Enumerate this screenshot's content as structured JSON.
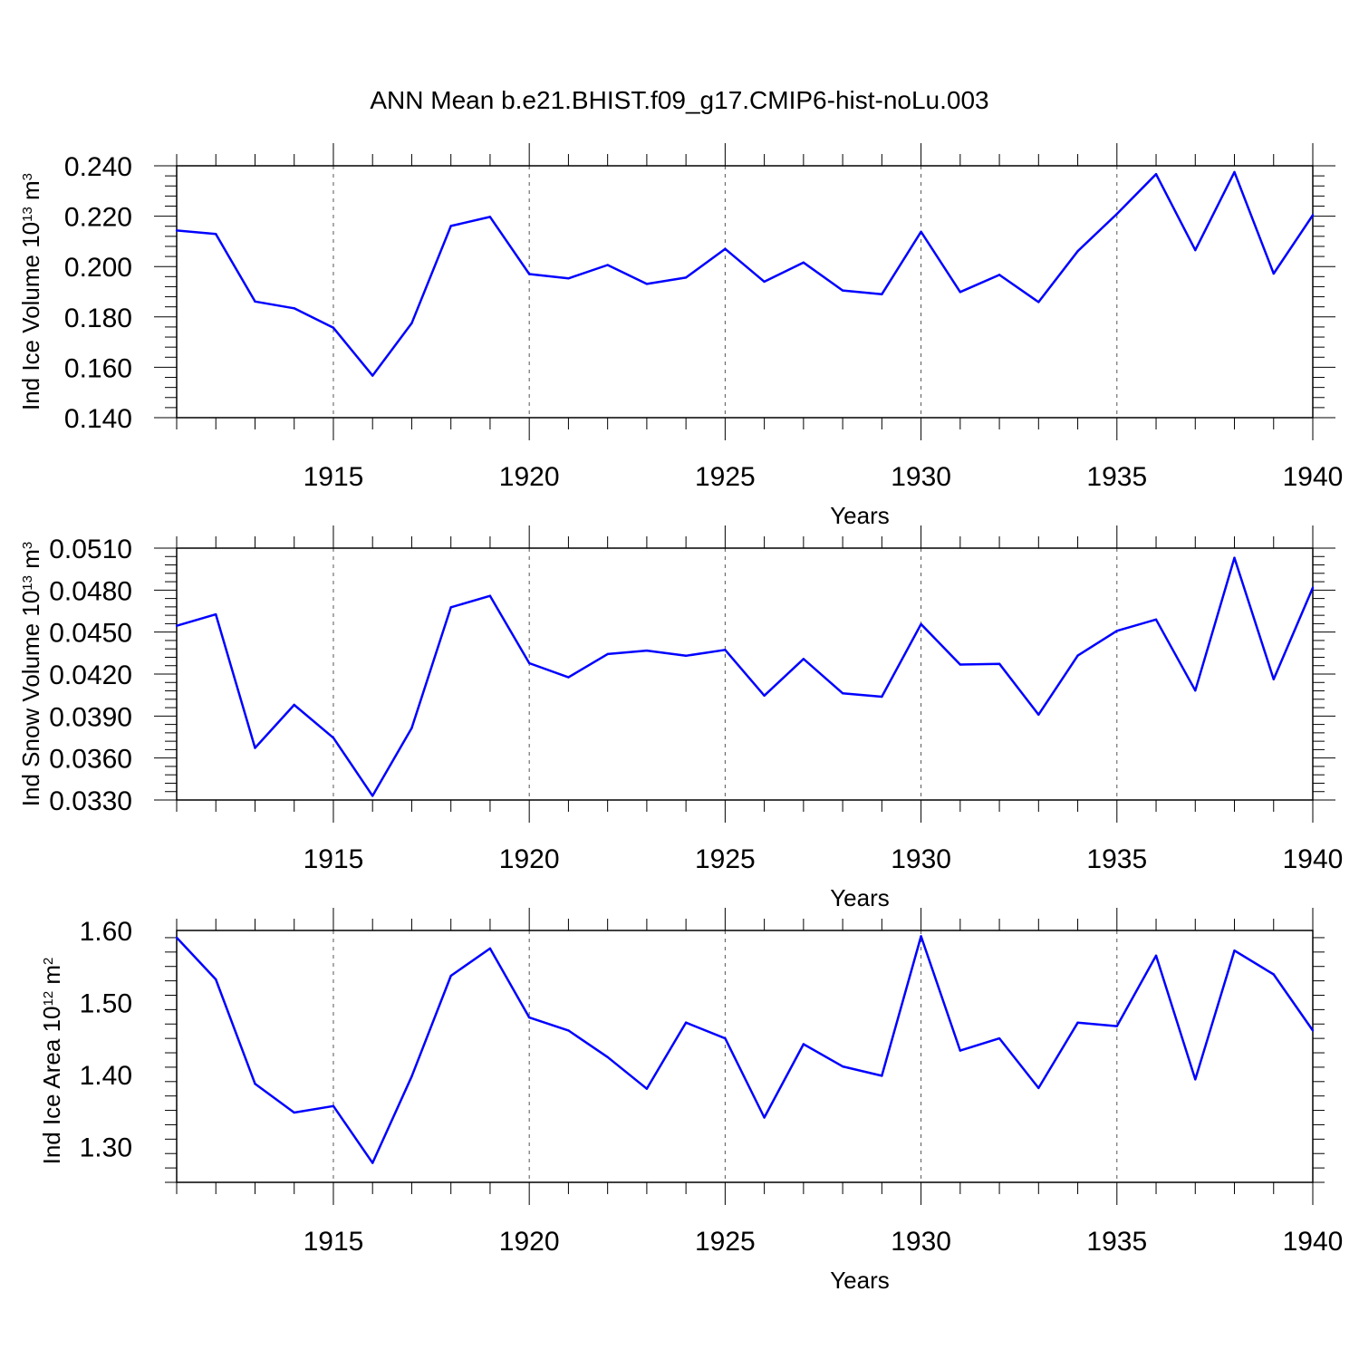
{
  "title": "ANN Mean b.e21.BHIST.f09_g17.CMIP6-hist-noLu.003",
  "line_color": "#0000ff",
  "chart_data": [
    {
      "type": "line",
      "ylabel": {
        "text": "Ind Ice Volume 10",
        "exponent": "13",
        "unit": "m",
        "unit_exponent": "3"
      },
      "xlabel": "Years",
      "xlim": [
        1911,
        1940
      ],
      "ylim": [
        0.14,
        0.24
      ],
      "ytick_values": [
        0.14,
        0.16,
        0.18,
        0.2,
        0.22,
        0.24
      ],
      "ytick_labels": [
        "0.140",
        "0.160",
        "0.180",
        "0.200",
        "0.220",
        "0.240"
      ],
      "xtick_values": [
        1915,
        1920,
        1925,
        1930,
        1935,
        1940
      ],
      "xtick_labels": [
        "1915",
        "1920",
        "1925",
        "1930",
        "1935",
        "1940"
      ],
      "grid": "dashed vertical at major x ticks",
      "x": [
        1911,
        1912,
        1913,
        1914,
        1915,
        1916,
        1917,
        1918,
        1919,
        1920,
        1921,
        1922,
        1923,
        1924,
        1925,
        1926,
        1927,
        1928,
        1929,
        1930,
        1931,
        1932,
        1933,
        1934,
        1935,
        1936,
        1937,
        1938,
        1939,
        1940
      ],
      "values": [
        0.2143,
        0.2129,
        0.1861,
        0.1834,
        0.1757,
        0.1567,
        0.1775,
        0.2161,
        0.2197,
        0.197,
        0.1953,
        0.2006,
        0.1931,
        0.1956,
        0.207,
        0.194,
        0.2016,
        0.1905,
        0.189,
        0.2138,
        0.1899,
        0.1967,
        0.1859,
        0.2061,
        0.2209,
        0.2367,
        0.2065,
        0.2375,
        0.1972,
        0.2204
      ]
    },
    {
      "type": "line",
      "ylabel": {
        "text": "Ind Snow Volume 10",
        "exponent": "13",
        "unit": "m",
        "unit_exponent": "3"
      },
      "xlabel": "Years",
      "xlim": [
        1911,
        1940
      ],
      "ylim": [
        0.033,
        0.051
      ],
      "ytick_values": [
        0.033,
        0.036,
        0.039,
        0.042,
        0.045,
        0.048,
        0.051
      ],
      "ytick_labels": [
        "0.0330",
        "0.0360",
        "0.0390",
        "0.0420",
        "0.0450",
        "0.0480",
        "0.0510"
      ],
      "xtick_values": [
        1915,
        1920,
        1925,
        1930,
        1935,
        1940
      ],
      "xtick_labels": [
        "1915",
        "1920",
        "1925",
        "1930",
        "1935",
        "1940"
      ],
      "grid": "dashed vertical at major x ticks",
      "x": [
        1911,
        1912,
        1913,
        1914,
        1915,
        1916,
        1917,
        1918,
        1919,
        1920,
        1921,
        1922,
        1923,
        1924,
        1925,
        1926,
        1927,
        1928,
        1929,
        1930,
        1931,
        1932,
        1933,
        1934,
        1935,
        1936,
        1937,
        1938,
        1939,
        1940
      ],
      "values": [
        0.04545,
        0.04627,
        0.03672,
        0.0398,
        0.03744,
        0.0333,
        0.03814,
        0.04677,
        0.04759,
        0.04278,
        0.04177,
        0.04343,
        0.04368,
        0.04331,
        0.04373,
        0.04046,
        0.04308,
        0.04063,
        0.04038,
        0.04557,
        0.04268,
        0.04273,
        0.0391,
        0.04332,
        0.04509,
        0.0459,
        0.04082,
        0.05031,
        0.04163,
        0.04817
      ]
    },
    {
      "type": "line",
      "ylabel": {
        "text": "Ind Ice Area 10",
        "exponent": "12",
        "unit": "m",
        "unit_exponent": "2"
      },
      "xlabel": "Years",
      "xlim": [
        1911,
        1940
      ],
      "ylim": [
        1.25,
        1.6
      ],
      "ytick_values": [
        1.3,
        1.4,
        1.5,
        1.6
      ],
      "ytick_labels": [
        "1.30",
        "1.40",
        "1.50",
        "1.60"
      ],
      "xtick_values": [
        1915,
        1920,
        1925,
        1930,
        1935,
        1940
      ],
      "xtick_labels": [
        "1915",
        "1920",
        "1925",
        "1930",
        "1935",
        "1940"
      ],
      "grid": "dashed vertical at major x ticks",
      "x": [
        1911,
        1912,
        1913,
        1914,
        1915,
        1916,
        1917,
        1918,
        1919,
        1920,
        1921,
        1922,
        1923,
        1924,
        1925,
        1926,
        1927,
        1928,
        1929,
        1930,
        1931,
        1932,
        1933,
        1934,
        1935,
        1936,
        1937,
        1938,
        1939,
        1940
      ],
      "values": [
        1.59,
        1.532,
        1.387,
        1.347,
        1.356,
        1.277,
        1.397,
        1.537,
        1.575,
        1.479,
        1.461,
        1.424,
        1.38,
        1.472,
        1.45,
        1.34,
        1.442,
        1.411,
        1.398,
        1.592,
        1.433,
        1.45,
        1.381,
        1.472,
        1.467,
        1.565,
        1.393,
        1.572,
        1.539,
        1.461
      ]
    }
  ]
}
